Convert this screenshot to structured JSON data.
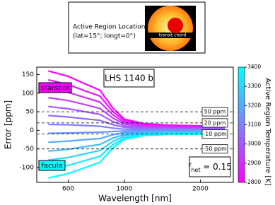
{
  "inset": {
    "title": "Active Region Location:",
    "subtitle": "(lat=15°; longt=0°)",
    "chord_label": "transit chord"
  },
  "chart_data": {
    "type": "line",
    "xlabel": "Wavelength [nm]",
    "ylabel": "Error [ppm]",
    "xlim": [
      450,
      2700
    ],
    "xticks": [
      600,
      1000,
      2000
    ],
    "xscale": "log",
    "ylim": [
      -140,
      170
    ],
    "yticks": [
      -100,
      -50,
      0,
      50,
      100,
      150
    ],
    "x": [
      500,
      600,
      700,
      800,
      900,
      1000,
      1200,
      1500,
      2000,
      2500
    ],
    "series": [
      {
        "color": "#ff00ff",
        "values": [
          160,
          145,
          125,
          108,
          60,
          30,
          18,
          14,
          12,
          10
        ]
      },
      {
        "color": "#ea15ff",
        "values": [
          136,
          123,
          106,
          92,
          51,
          26,
          15,
          12,
          10,
          9
        ]
      },
      {
        "color": "#d42aff",
        "values": [
          112,
          102,
          88,
          76,
          42,
          21,
          13,
          10,
          8,
          7
        ]
      },
      {
        "color": "#bf40ff",
        "values": [
          88,
          80,
          69,
          59,
          33,
          17,
          10,
          8,
          7,
          6
        ]
      },
      {
        "color": "#aa55ff",
        "values": [
          64,
          58,
          50,
          43,
          24,
          12,
          7,
          6,
          5,
          4
        ]
      },
      {
        "color": "#956aff",
        "values": [
          40,
          36,
          31,
          27,
          15,
          8,
          5,
          4,
          3,
          3
        ]
      },
      {
        "color": "#8080ff",
        "values": [
          16,
          15,
          13,
          11,
          6,
          3,
          2,
          1,
          1,
          1
        ]
      },
      {
        "color": "#6a95ff",
        "values": [
          -8,
          -7,
          -6,
          -5,
          -3,
          -2,
          -1,
          -1,
          -1,
          0
        ]
      },
      {
        "color": "#55aaff",
        "values": [
          -32,
          -29,
          -25,
          -22,
          -12,
          -6,
          -4,
          -3,
          -2,
          -2
        ]
      },
      {
        "color": "#40bfff",
        "values": [
          -56,
          -51,
          -44,
          -38,
          -21,
          -11,
          -6,
          -5,
          -4,
          -4
        ]
      },
      {
        "color": "#2ad4ff",
        "values": [
          -80,
          -73,
          -63,
          -54,
          -30,
          -15,
          -9,
          -7,
          -6,
          -5
        ]
      },
      {
        "color": "#15eaff",
        "values": [
          -104,
          -94,
          -81,
          -70,
          -39,
          -20,
          -12,
          -9,
          -8,
          -7
        ]
      },
      {
        "color": "#00ffff",
        "values": [
          -128,
          -116,
          -100,
          -86,
          -48,
          -24,
          -14,
          -11,
          -10,
          -8
        ]
      }
    ],
    "reference_lines": [
      {
        "value": 50,
        "label": "50 ppm"
      },
      {
        "value": 20,
        "label": "20 ppm"
      },
      {
        "value": -10,
        "label": "-10 ppm"
      },
      {
        "value": -50,
        "label": "-50 ppm"
      }
    ],
    "annotations": {
      "spot": "starspot",
      "facula": "facula",
      "planet": "LHS 1140 b",
      "fhet": {
        "symbol": "f",
        "subscript": "het",
        "text": " = 0.15"
      }
    },
    "colorbar": {
      "label": "Active Region Temperature [K]",
      "lim": [
        2800,
        3400
      ],
      "ticks": [
        2800,
        2900,
        3000,
        3100,
        3200,
        3300,
        3400
      ],
      "colors": [
        "#ff00ff",
        "#8080ff",
        "#00ffff"
      ]
    }
  }
}
